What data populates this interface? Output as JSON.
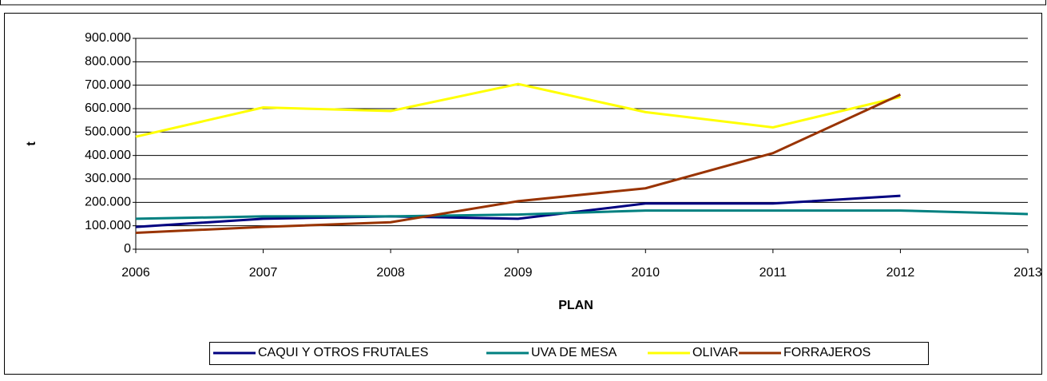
{
  "chart_data": {
    "type": "line",
    "x_label": "PLAN",
    "y_label": "t",
    "x": [
      2006,
      2007,
      2008,
      2009,
      2010,
      2011,
      2012,
      2013
    ],
    "xlim": [
      2006,
      2013
    ],
    "xticks": [
      2006,
      2007,
      2008,
      2009,
      2010,
      2011,
      2012,
      2013
    ],
    "ylim": [
      0,
      900000
    ],
    "yticks": [
      0,
      {
        "value": 100000,
        "label": "100.000"
      },
      {
        "value": 200000,
        "label": "200.000"
      },
      {
        "value": 300000,
        "label": "300.000"
      },
      {
        "value": 400000,
        "label": "400.000"
      },
      {
        "value": 500000,
        "label": "500.000"
      },
      {
        "value": 600000,
        "label": "600.000"
      },
      {
        "value": 700000,
        "label": "700.000"
      },
      {
        "value": 800000,
        "label": "800.000"
      },
      {
        "value": 900000,
        "label": "900.000"
      }
    ],
    "grid": true,
    "legend": "bottom",
    "series": [
      {
        "name": "CAQUI Y OTROS FRUTALES",
        "color": "#000080",
        "values": [
          95000,
          130000,
          140000,
          130000,
          195000,
          195000,
          228000,
          null
        ]
      },
      {
        "name": "UVA DE MESA",
        "color": "#008080",
        "values": [
          130000,
          140000,
          140000,
          148000,
          165000,
          165000,
          165000,
          150000
        ]
      },
      {
        "name": "OLIVAR",
        "color": "#ffff00",
        "values": [
          480000,
          605000,
          590000,
          705000,
          585000,
          520000,
          650000,
          null
        ]
      },
      {
        "name": "FORRAJEROS",
        "color": "#993300",
        "values": [
          70000,
          95000,
          115000,
          205000,
          260000,
          410000,
          660000,
          null
        ]
      }
    ]
  }
}
